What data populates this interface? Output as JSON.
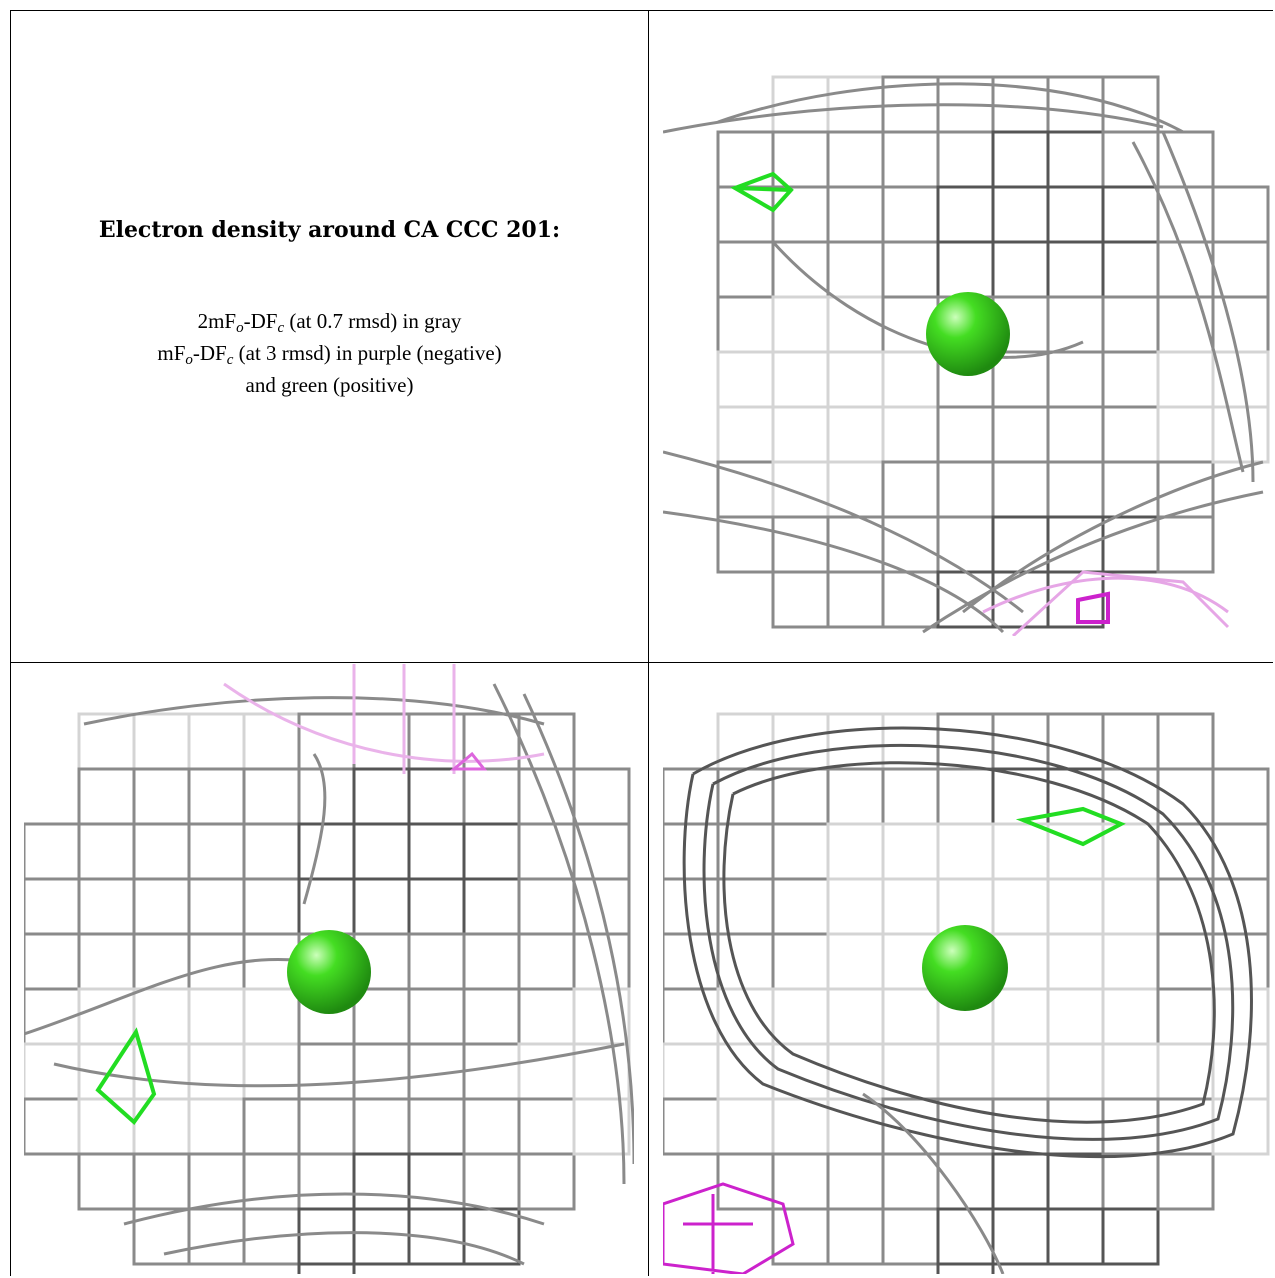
{
  "caption": {
    "title": "Electron density around CA CCC 201:",
    "line1_a": "2mF",
    "line1_sub1": "o",
    "line1_b": "-DF",
    "line1_sub2": "c",
    "line1_c": " (at 0.7 rmsd) in gray",
    "line2_a": "mF",
    "line2_sub1": "o",
    "line2_b": "-DF",
    "line2_sub2": "c",
    "line2_c": " (at 3 rmsd) in purple (negative)",
    "line3": "and green (positive)"
  },
  "colors": {
    "mesh_gray": "#8a8a8a",
    "mesh_dark": "#555555",
    "mesh_light": "#d4d4d4",
    "positive_green": "#22dd22",
    "negative_purple": "#cc22cc",
    "atom_green": "#44dd22"
  },
  "panels": [
    {
      "name": "view-1",
      "atom": "CA"
    },
    {
      "name": "view-2",
      "atom": "CA"
    },
    {
      "name": "view-3",
      "atom": "CA"
    }
  ]
}
